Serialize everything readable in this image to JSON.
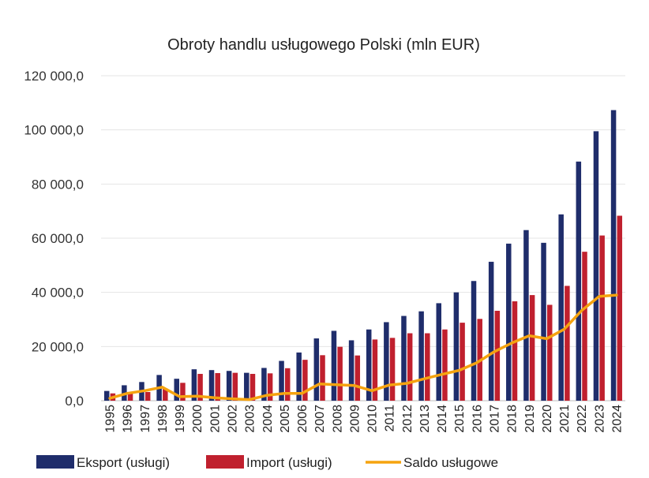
{
  "chart_data": {
    "type": "bar",
    "title": "Obroty handlu usługowego Polski (mln EUR)",
    "xlabel": "",
    "ylabel": "",
    "ylim": [
      0,
      120000
    ],
    "yticks": [
      0,
      20000,
      40000,
      60000,
      80000,
      100000,
      120000
    ],
    "ytick_labels": [
      "0,0",
      "20 000,0",
      "40 000,0",
      "60 000,0",
      "80 000,0",
      "100 000,0",
      "120 000,0"
    ],
    "grid": true,
    "legend_position": "bottom",
    "categories": [
      "1995",
      "1996",
      "1997",
      "1998",
      "1999",
      "2000",
      "2001",
      "2002",
      "2003",
      "2004",
      "2005",
      "2006",
      "2007",
      "2008",
      "2009",
      "2010",
      "2011",
      "2012",
      "2013",
      "2014",
      "2015",
      "2016",
      "2017",
      "2018",
      "2019",
      "2020",
      "2021",
      "2022",
      "2023",
      "2024"
    ],
    "series": [
      {
        "name": "Eksport (usługi)",
        "type": "bar",
        "color": "#1f2d6b",
        "values": [
          3600,
          5700,
          6900,
          9500,
          8100,
          11600,
          11300,
          11000,
          10300,
          12100,
          14700,
          17800,
          23000,
          25800,
          22300,
          26300,
          29000,
          31300,
          33000,
          36000,
          40000,
          44200,
          51300,
          58000,
          63000,
          58300,
          68800,
          88300,
          99500,
          107300
        ]
      },
      {
        "name": "Import (usługi)",
        "type": "bar",
        "color": "#c0202e",
        "values": [
          2700,
          3000,
          3200,
          4500,
          6600,
          9900,
          10200,
          10300,
          9900,
          10100,
          12000,
          15100,
          16800,
          19900,
          16700,
          22600,
          23200,
          24900,
          24900,
          26300,
          28800,
          30200,
          33200,
          36700,
          39000,
          35400,
          42400,
          55000,
          61000,
          68300
        ]
      },
      {
        "name": "Saldo usługowe",
        "type": "line",
        "color": "#f5a30f",
        "values": [
          900,
          2700,
          3700,
          5000,
          1500,
          1700,
          1100,
          700,
          400,
          2000,
          2700,
          2700,
          6200,
          5900,
          5600,
          3700,
          5800,
          6400,
          8100,
          9700,
          11200,
          14000,
          18100,
          21300,
          24000,
          22900,
          26400,
          33300,
          38500,
          39000
        ]
      }
    ]
  }
}
